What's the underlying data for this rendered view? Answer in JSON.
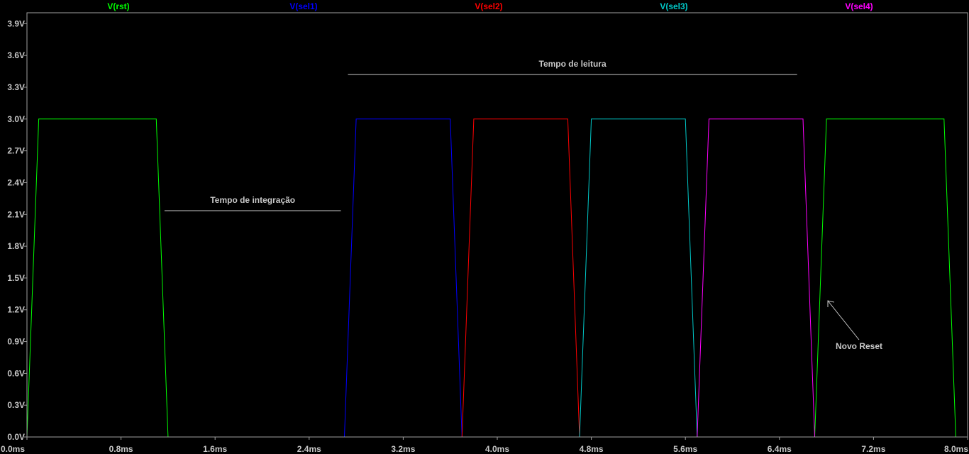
{
  "colors": {
    "background": "#000000",
    "frame": "#a0a0a0",
    "text": "#c8c8c8"
  },
  "chart_data": {
    "type": "line",
    "grid": false,
    "xlim": [
      0,
      8.0
    ],
    "ylim": [
      0,
      4.0
    ],
    "x_unit": "ms",
    "y_unit": "V",
    "x_ticks": [
      "0.0ms",
      "0.8ms",
      "1.6ms",
      "2.4ms",
      "3.2ms",
      "4.0ms",
      "4.8ms",
      "5.6ms",
      "6.4ms",
      "7.2ms",
      "8.0ms"
    ],
    "x_tick_values": [
      0,
      0.8,
      1.6,
      2.4,
      3.2,
      4.0,
      4.8,
      5.6,
      6.4,
      7.2,
      8.0
    ],
    "y_ticks": [
      "0.0V",
      "0.3V",
      "0.6V",
      "0.9V",
      "1.2V",
      "1.5V",
      "1.8V",
      "2.1V",
      "2.4V",
      "2.7V",
      "3.0V",
      "3.3V",
      "3.6V",
      "3.9V"
    ],
    "y_tick_values": [
      0,
      0.3,
      0.6,
      0.9,
      1.2,
      1.5,
      1.8,
      2.1,
      2.4,
      2.7,
      3.0,
      3.3,
      3.6,
      3.9
    ],
    "legend_position": "top",
    "series": [
      {
        "name": "V(rst)",
        "color": "#00ff00",
        "x": [
          0,
          0.1,
          1.1,
          1.2,
          6.7,
          6.8,
          7.8,
          7.9,
          8.0
        ],
        "y": [
          0,
          3.0,
          3.0,
          0,
          0,
          3.0,
          3.0,
          0,
          0
        ]
      },
      {
        "name": "V(sel1)",
        "color": "#0000ff",
        "x": [
          0,
          2.7,
          2.8,
          3.6,
          3.7,
          8.0
        ],
        "y": [
          0,
          0,
          3.0,
          3.0,
          0,
          0
        ]
      },
      {
        "name": "V(sel2)",
        "color": "#ff0000",
        "x": [
          0,
          3.7,
          3.8,
          4.6,
          4.7,
          8.0
        ],
        "y": [
          0,
          0,
          3.0,
          3.0,
          0,
          0
        ]
      },
      {
        "name": "V(sel3)",
        "color": "#00c8c8",
        "x": [
          0,
          4.7,
          4.8,
          5.6,
          5.7,
          8.0
        ],
        "y": [
          0,
          0,
          3.0,
          3.0,
          0,
          0
        ]
      },
      {
        "name": "V(sel4)",
        "color": "#ff00ff",
        "x": [
          0,
          5.7,
          5.8,
          6.6,
          6.7,
          8.0
        ],
        "y": [
          0,
          0,
          3.0,
          3.0,
          0,
          0
        ]
      }
    ],
    "annotations": {
      "integration": {
        "text": "Tempo de integração",
        "x_start": 1.17,
        "x_end": 2.67,
        "y": 2.13
      },
      "reading": {
        "text": "Tempo de leitura",
        "x_start": 2.73,
        "x_end": 6.55,
        "y": 4.52
      },
      "new_reset": {
        "text": "Novo Reset",
        "x": 7.0,
        "y": 1.14,
        "arrow_to_x": 6.83,
        "arrow_to_y": 1.28
      }
    }
  }
}
